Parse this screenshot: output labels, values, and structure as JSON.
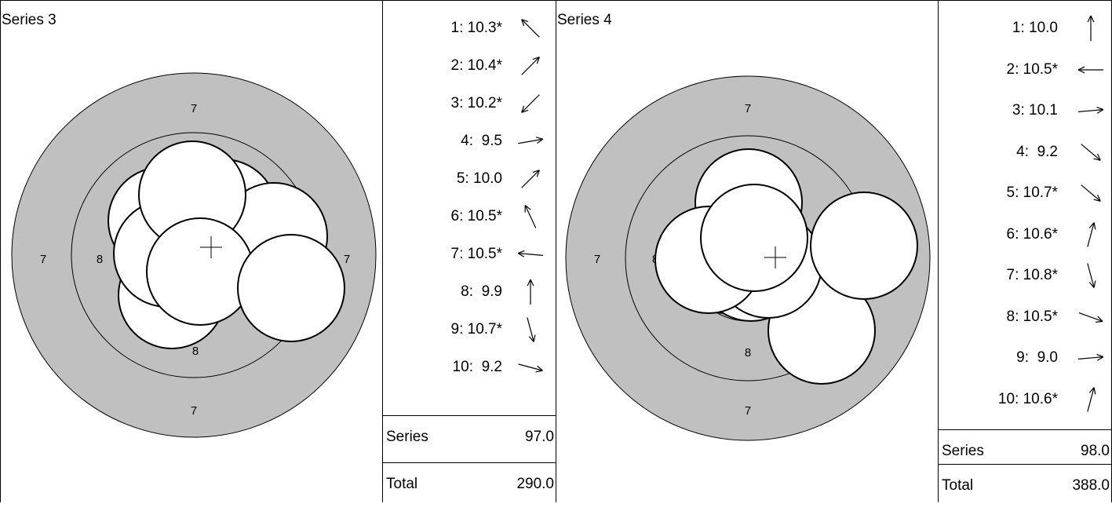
{
  "colors": {
    "ring_fill": "#c0c0c0",
    "line": "#000000",
    "hole": "#ffffff"
  },
  "panels": [
    {
      "title": "Series 3",
      "ring_labels": [
        "7",
        "7",
        "7",
        "7",
        "8",
        "8"
      ],
      "shots": [
        {
          "label": "1: 10.3*",
          "arrow_deg": 135
        },
        {
          "label": "2: 10.4*",
          "arrow_deg": 45
        },
        {
          "label": "3: 10.2*",
          "arrow_deg": 225
        },
        {
          "label": "4:  9.5",
          "arrow_deg": 10
        },
        {
          "label": "5: 10.0",
          "arrow_deg": 45
        },
        {
          "label": "6: 10.5*",
          "arrow_deg": 115
        },
        {
          "label": "7: 10.5*",
          "arrow_deg": 175
        },
        {
          "label": "8:  9.9",
          "arrow_deg": 90
        },
        {
          "label": "9: 10.7*",
          "arrow_deg": 285
        },
        {
          "label": "10:  9.2",
          "arrow_deg": 345
        }
      ],
      "series_label": "Series",
      "series_value": "97.0",
      "total_label": "Total",
      "total_value": "290.0"
    },
    {
      "title": "Series 4",
      "ring_labels": [
        "7",
        "7",
        "7",
        "8",
        "8"
      ],
      "shots": [
        {
          "label": "1: 10.0",
          "arrow_deg": 90
        },
        {
          "label": "2: 10.5*",
          "arrow_deg": 180
        },
        {
          "label": "3: 10.1",
          "arrow_deg": 5
        },
        {
          "label": "4:  9.2",
          "arrow_deg": 320
        },
        {
          "label": "5: 10.7*",
          "arrow_deg": 320
        },
        {
          "label": "6: 10.6*",
          "arrow_deg": 75
        },
        {
          "label": "7: 10.8*",
          "arrow_deg": 285
        },
        {
          "label": "8: 10.5*",
          "arrow_deg": 340
        },
        {
          "label": "9:  9.0",
          "arrow_deg": 5
        },
        {
          "label": "10: 10.6*",
          "arrow_deg": 75
        }
      ],
      "series_label": "Series",
      "series_value": "98.0",
      "total_label": "Total",
      "total_value": "388.0"
    }
  ]
}
